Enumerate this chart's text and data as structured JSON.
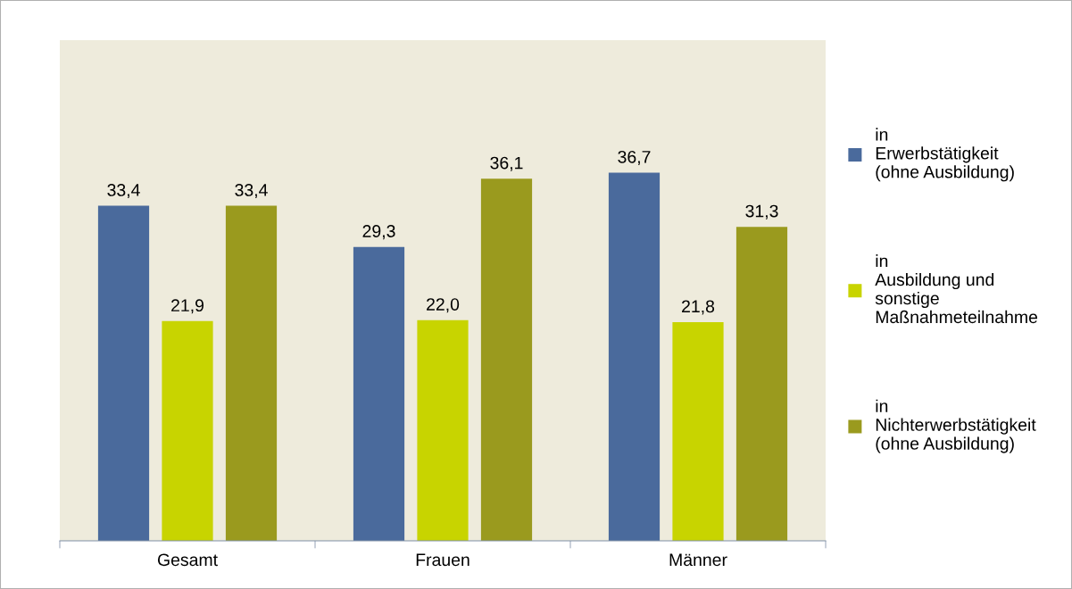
{
  "chart_data": {
    "type": "bar",
    "categories": [
      "Gesamt",
      "Frauen",
      "Männer"
    ],
    "series": [
      {
        "name": "in\nErwerbstätigkeit\n(ohne Ausbildung)",
        "color": "#4a6a9c",
        "values": [
          33.4,
          29.3,
          36.7
        ],
        "value_labels": [
          "33,4",
          "29,3",
          "36,7"
        ]
      },
      {
        "name": "in\nAusbildung und\nsonstige\nMaßnahmeteilnahme",
        "color": "#c8d400",
        "values": [
          21.9,
          22.0,
          21.8
        ],
        "value_labels": [
          "21,9",
          "22,0",
          "21,8"
        ]
      },
      {
        "name": "in\nNichterwerbstätigkeit\n(ohne Ausbildung)",
        "color": "#9a9a1e",
        "values": [
          33.4,
          36.1,
          31.3
        ],
        "value_labels": [
          "33,4",
          "36,1",
          "31,3"
        ]
      }
    ],
    "legend": "right",
    "tick_labels": "x",
    "grid": false
  }
}
